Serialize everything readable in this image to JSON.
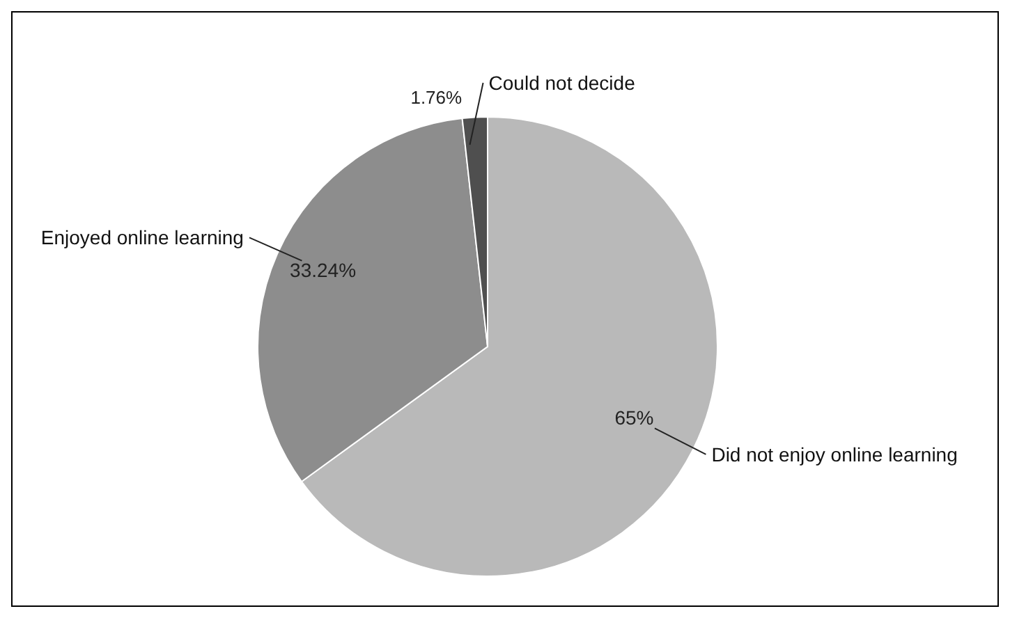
{
  "chart_data": {
    "type": "pie",
    "categories": [
      "Did not enjoy online learning",
      "Enjoyed online learning",
      "Could not decide"
    ],
    "values": [
      65,
      33.24,
      1.76
    ],
    "colors": [
      "#b9b9b9",
      "#8d8d8d",
      "#4f4f4f"
    ],
    "value_labels": [
      "65%",
      "33.24%",
      "1.76%"
    ],
    "legend": false
  }
}
